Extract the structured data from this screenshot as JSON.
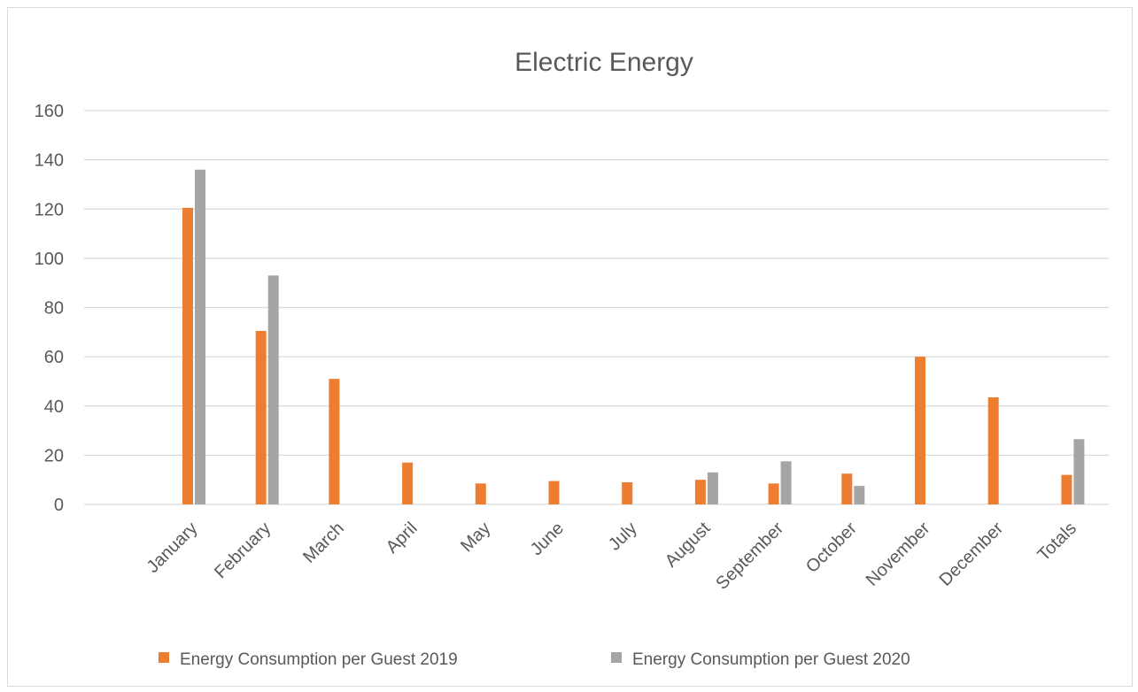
{
  "chart_data": {
    "type": "bar",
    "title": "Electric Energy",
    "categories": [
      "January",
      "February",
      "March",
      "April",
      "May",
      "June",
      "July",
      "August",
      "September",
      "October",
      "November",
      "December",
      "Totals"
    ],
    "series": [
      {
        "name": "Energy Consumption per Guest 2019",
        "color": "#ed7d31",
        "values": [
          120.5,
          70.5,
          51,
          17,
          8.5,
          9.5,
          9,
          10,
          8.5,
          12.5,
          60,
          43.5,
          12
        ]
      },
      {
        "name": "Energy Consumption per Guest 2020",
        "color": "#a5a5a5",
        "values": [
          136,
          93,
          null,
          null,
          null,
          null,
          null,
          13,
          17.5,
          7.5,
          null,
          null,
          26.5
        ]
      }
    ],
    "ylim": [
      0,
      160
    ],
    "yticks": [
      0,
      20,
      40,
      60,
      80,
      100,
      120,
      140,
      160
    ],
    "grid": true,
    "legend_position": "bottom",
    "xlabel": "",
    "ylabel": ""
  }
}
